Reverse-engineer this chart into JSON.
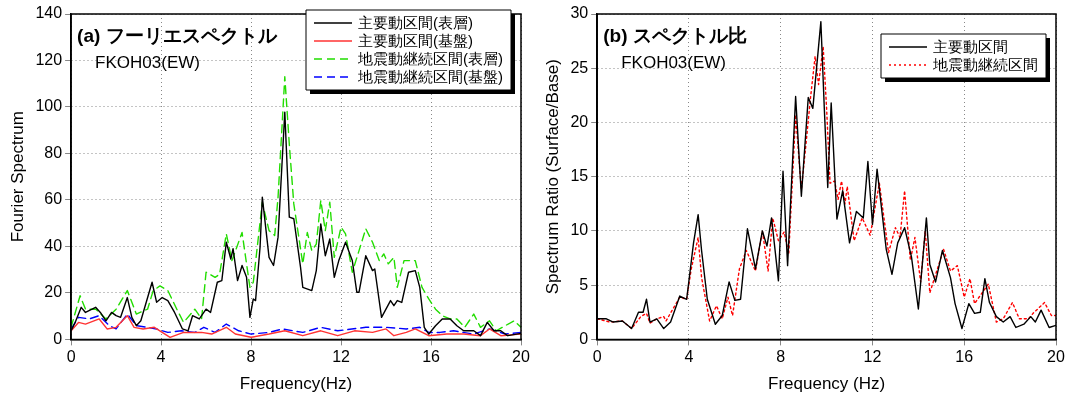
{
  "chart_data": [
    {
      "type": "line",
      "title": "(a) フーリエスペクトル",
      "annotations": [
        "FKOH03(EW)"
      ],
      "xlabel": "Frequency(Hz)",
      "ylabel": "Fourier Spectrum",
      "xlim": [
        0,
        20
      ],
      "xticks": [
        0,
        4,
        8,
        12,
        16,
        20
      ],
      "ylim": [
        0,
        140
      ],
      "yticks": [
        0,
        20,
        40,
        60,
        80,
        100,
        120,
        140
      ],
      "grid": true,
      "legend": "top right",
      "series": [
        {
          "name": "主要動区間(表層)",
          "color": "#000000",
          "line_style": "solid",
          "x": [
            0,
            0.18,
            0.45,
            0.64,
            1.09,
            1.3,
            1.55,
            1.8,
            2.0,
            2.2,
            2.5,
            2.7,
            2.9,
            3.1,
            3.6,
            3.8,
            4.05,
            4.3,
            4.6,
            4.95,
            5.2,
            5.4,
            5.7,
            6.0,
            6.2,
            6.5,
            6.7,
            6.9,
            7.1,
            7.2,
            7.4,
            7.6,
            7.8,
            7.95,
            8.1,
            8.2,
            8.4,
            8.5,
            8.8,
            9.0,
            9.2,
            9.5,
            9.7,
            9.9,
            10.2,
            10.3,
            10.7,
            10.9,
            11.1,
            11.3,
            11.5,
            11.7,
            11.9,
            12.2,
            12.5,
            12.7,
            12.8,
            13.1,
            13.4,
            13.5,
            13.8,
            14.2,
            14.35,
            14.5,
            14.7,
            15.0,
            15.3,
            15.5,
            15.7,
            15.9,
            16.2,
            16.5,
            16.85,
            17.15,
            17.45,
            17.9,
            18.2,
            18.5,
            18.8,
            19.1,
            19.4,
            20
          ],
          "values": [
            3.7,
            7.3,
            13.8,
            11.6,
            13.8,
            11.6,
            8,
            11.6,
            10.2,
            9.5,
            18,
            9.5,
            5.9,
            8,
            24.6,
            16,
            18,
            16.7,
            11.6,
            4.5,
            3.7,
            10.2,
            8.8,
            13,
            11.6,
            24.6,
            25.3,
            41.8,
            34.6,
            39,
            25.3,
            31.8,
            26.7,
            9.5,
            17.4,
            16.7,
            39.7,
            61.2,
            35.3,
            31.8,
            44,
            97.8,
            52.6,
            51.9,
            31,
            22.4,
            21,
            29.6,
            49.7,
            36,
            43.2,
            26.7,
            33.9,
            41.8,
            33.9,
            20.3,
            20.3,
            36,
            29.6,
            30.3,
            9.5,
            16.7,
            14.5,
            16.7,
            15.9,
            28.9,
            29.6,
            22.4,
            5.2,
            2.3,
            5.9,
            8.8,
            8.8,
            5.9,
            3.7,
            3.7,
            1.6,
            7.3,
            3.7,
            3.7,
            1.6,
            2.6
          ]
        },
        {
          "name": "主要動区間(基盤)",
          "color": "#ff3333",
          "line_style": "solid",
          "x": [
            0,
            0.33,
            0.64,
            1.25,
            1.6,
            2.0,
            2.5,
            2.8,
            3.2,
            3.7,
            4.05,
            4.4,
            5.0,
            5.8,
            6.25,
            6.9,
            7.3,
            8.0,
            8.8,
            9.5,
            10.3,
            11.1,
            11.85,
            12.6,
            13.4,
            14.0,
            14.35,
            14.9,
            15.3,
            15.9,
            16.7,
            17.45,
            18.2,
            18.6,
            19.1,
            20
          ],
          "values": [
            3.7,
            7.3,
            6.6,
            8.8,
            4.5,
            5.2,
            10.2,
            5.2,
            4.5,
            5.2,
            3,
            0.9,
            3,
            3,
            2.3,
            5.2,
            2.3,
            0.9,
            2.3,
            3.7,
            1.6,
            3.7,
            1.6,
            3.7,
            3,
            4.5,
            1.6,
            3,
            4.5,
            1.6,
            2.3,
            2.3,
            1.6,
            4.5,
            1.6,
            2.3
          ]
        },
        {
          "name": "地震動継続区間(表層)",
          "color": "#22dd00",
          "line_style": "dashed",
          "x": [
            0,
            0.4,
            0.64,
            1.1,
            1.55,
            2.0,
            2.5,
            2.9,
            3.4,
            3.65,
            3.95,
            4.3,
            4.7,
            5.0,
            5.5,
            5.8,
            6.0,
            6.4,
            6.6,
            6.9,
            7.15,
            7.6,
            7.95,
            8.1,
            8.5,
            8.8,
            9.05,
            9.2,
            9.5,
            9.7,
            9.9,
            10.1,
            10.3,
            10.5,
            10.7,
            10.9,
            11.1,
            11.3,
            11.5,
            11.7,
            12.0,
            12.2,
            12.5,
            12.8,
            13.1,
            13.4,
            13.7,
            13.9,
            14.1,
            14.35,
            14.5,
            14.8,
            15.3,
            15.6,
            15.9,
            16.2,
            16.5,
            16.85,
            17.15,
            17.5,
            17.9,
            18.2,
            18.6,
            18.9,
            19.3,
            19.7,
            20
          ],
          "values": [
            5.2,
            18.8,
            13,
            13,
            8.8,
            13,
            21,
            10.9,
            13,
            21,
            23,
            21,
            13,
            7.3,
            13,
            8.8,
            28.9,
            26.7,
            28,
            45.4,
            33.9,
            46,
            22.4,
            24.6,
            59,
            46.8,
            44.7,
            61.2,
            113,
            84,
            58.3,
            45.4,
            32.5,
            46,
            38.2,
            41,
            59.8,
            46.8,
            59,
            35.3,
            48.3,
            45.4,
            28.9,
            38.2,
            47.6,
            41.8,
            33.9,
            36.8,
            32.5,
            35.3,
            22.4,
            33.9,
            33.9,
            22.4,
            17.4,
            13,
            10.2,
            8.8,
            8.8,
            5.2,
            10.9,
            5.2,
            8,
            3.7,
            5.9,
            8,
            5.2
          ]
        },
        {
          "name": "地震動継続区間(基盤)",
          "color": "#0000ff",
          "line_style": "dashed",
          "x": [
            0,
            0.33,
            0.8,
            1.25,
            1.7,
            2.0,
            2.5,
            2.9,
            3.4,
            3.8,
            4.3,
            4.9,
            5.5,
            5.9,
            6.4,
            6.9,
            7.45,
            8.0,
            8.8,
            9.4,
            10.3,
            11.1,
            11.85,
            13.1,
            14.0,
            14.9,
            15.5,
            15.9,
            16.4,
            17.0,
            17.9,
            18.6,
            19.3,
            20
          ],
          "values": [
            4.5,
            9.5,
            8.8,
            10.2,
            5.9,
            4.5,
            10.9,
            5.9,
            5.2,
            4.5,
            3,
            3.7,
            3,
            5.2,
            3,
            6.6,
            3.7,
            2.3,
            3,
            4.5,
            3,
            5.2,
            3.7,
            5.2,
            5.2,
            4.5,
            5.2,
            3,
            3,
            3.7,
            2.3,
            4.5,
            2.3,
            3
          ]
        }
      ]
    },
    {
      "type": "line",
      "title": "(b) スペクトル比",
      "annotations": [
        "FKOH03(EW)"
      ],
      "xlabel": "Frequency (Hz)",
      "ylabel": "Spectrum Ratio (Surface/Base)",
      "xlim": [
        0,
        20
      ],
      "xticks": [
        0,
        4,
        8,
        12,
        16,
        20
      ],
      "ylim": [
        0,
        30
      ],
      "yticks": [
        0,
        5,
        10,
        15,
        20,
        25,
        30
      ],
      "grid": true,
      "legend": "top right",
      "series": [
        {
          "name": "主要動区間",
          "color": "#000000",
          "line_style": "solid",
          "x": [
            0,
            0.4,
            0.7,
            1.1,
            1.5,
            1.8,
            2.0,
            2.15,
            2.3,
            2.6,
            2.9,
            3.2,
            3.6,
            3.9,
            4.2,
            4.4,
            4.55,
            4.8,
            5.15,
            5.45,
            5.75,
            6.0,
            6.25,
            6.55,
            6.9,
            7.2,
            7.4,
            7.6,
            7.9,
            8.1,
            8.3,
            8.65,
            8.9,
            9.2,
            9.4,
            9.75,
            9.9,
            10.05,
            10.2,
            10.45,
            10.7,
            11.0,
            11.3,
            11.6,
            11.8,
            12.0,
            12.2,
            12.6,
            12.85,
            13.1,
            13.4,
            13.7,
            14.0,
            14.35,
            14.5,
            14.75,
            15.05,
            15.4,
            15.6,
            15.9,
            16.2,
            16.45,
            16.7,
            16.9,
            17.1,
            17.4,
            17.7,
            18.0,
            18.25,
            18.6,
            18.9,
            19.1,
            19.35,
            19.7,
            20
          ],
          "values": [
            1.9,
            1.9,
            1.6,
            1.7,
            1.0,
            2.5,
            2.5,
            3.7,
            1.6,
            1.9,
            1.0,
            1.6,
            4.0,
            3.7,
            8.9,
            11.5,
            8.2,
            3.7,
            1.4,
            2.2,
            5.3,
            3.6,
            3.7,
            10.2,
            6.5,
            10.0,
            8.6,
            11.2,
            5.4,
            15.5,
            6.8,
            22.4,
            13.2,
            22.3,
            21.3,
            29.3,
            21.3,
            14.0,
            21.8,
            11.1,
            13.7,
            8.9,
            11.8,
            11.2,
            16.4,
            10.6,
            15.7,
            8.3,
            6.0,
            8.9,
            10.3,
            7.6,
            2.8,
            11.2,
            6.9,
            5.3,
            8.2,
            5.7,
            3.3,
            1.0,
            3.3,
            2.4,
            2.5,
            5.6,
            3.4,
            2.1,
            1.6,
            2.1,
            1.1,
            1.4,
            2.1,
            1.6,
            2.7,
            1.1,
            1.3
          ]
        },
        {
          "name": "地震動継続区間",
          "color": "#ff0000",
          "line_style": "dotted",
          "x": [
            0,
            0.55,
            1.1,
            1.5,
            1.9,
            2.15,
            2.3,
            2.6,
            2.9,
            3.0,
            3.6,
            3.9,
            4.1,
            4.4,
            4.55,
            4.9,
            5.2,
            5.45,
            5.7,
            5.9,
            6.2,
            6.5,
            6.9,
            7.2,
            7.45,
            7.65,
            7.9,
            8.15,
            8.35,
            8.65,
            8.9,
            9.1,
            9.3,
            9.5,
            9.65,
            9.85,
            10.0,
            10.15,
            10.35,
            10.5,
            10.65,
            10.8,
            10.9,
            11.2,
            11.55,
            11.9,
            12.3,
            12.7,
            13.0,
            13.2,
            13.4,
            13.65,
            13.85,
            14.1,
            14.3,
            14.5,
            15.1,
            15.4,
            15.7,
            16.0,
            16.25,
            16.45,
            17.05,
            17.4,
            17.7,
            18.1,
            18.4,
            18.8,
            19.0,
            19.5,
            19.8,
            20
          ],
          "values": [
            1.9,
            1.6,
            1.7,
            1.0,
            2.1,
            2.4,
            1.5,
            1.9,
            2.1,
            1.7,
            3.9,
            3.7,
            6.5,
            9.4,
            5.7,
            1.7,
            3.1,
            1.9,
            3.9,
            2.2,
            6.5,
            8.2,
            6.3,
            10.0,
            6.3,
            11.2,
            9.1,
            9.9,
            7.9,
            20.7,
            13.8,
            18.0,
            22.3,
            26.1,
            23.5,
            27.0,
            21.3,
            14.4,
            14.6,
            12.9,
            14.6,
            12.5,
            14.1,
            9.1,
            11.2,
            9.6,
            14.4,
            8.0,
            10.3,
            9.4,
            13.7,
            7.3,
            9.4,
            5.3,
            10.0,
            4.3,
            8.3,
            6.3,
            6.8,
            3.9,
            5.6,
            3.3,
            5.1,
            1.6,
            1.9,
            3.4,
            1.9,
            1.9,
            2.4,
            3.4,
            2.2,
            2.2
          ]
        }
      ]
    }
  ]
}
